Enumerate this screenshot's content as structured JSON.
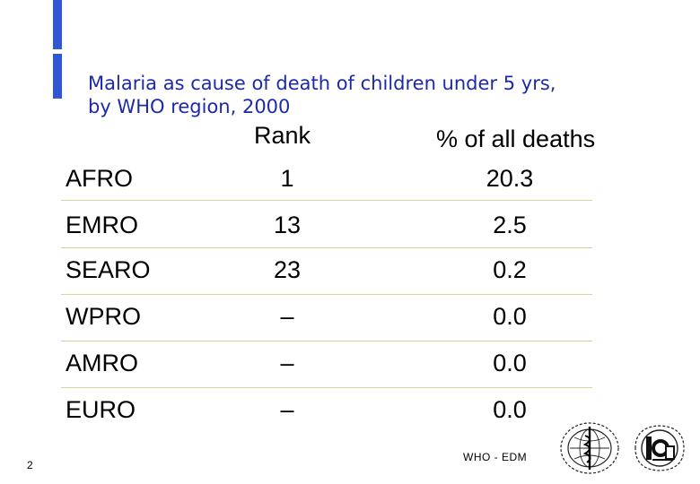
{
  "title": {
    "line1": "Malaria as cause of death of children under 5 yrs,",
    "line2": "by WHO region, 2000"
  },
  "table": {
    "headers": {
      "rank": "Rank",
      "percent": "% of all deaths"
    },
    "rows": [
      {
        "region": "AFRO",
        "rank": "1",
        "percent": "20.3"
      },
      {
        "region": "EMRO",
        "rank": "13",
        "percent": "2.5"
      },
      {
        "region": "SEARO",
        "rank": "23",
        "percent": "0.2"
      },
      {
        "region": "WPRO",
        "rank": "–",
        "percent": "0.0"
      },
      {
        "region": "AMRO",
        "rank": "–",
        "percent": "0.0"
      },
      {
        "region": "EURO",
        "rank": "–",
        "percent": "0.0"
      }
    ]
  },
  "footer": {
    "page_number": "2",
    "label": "WHO - EDM"
  },
  "colors": {
    "accent": "#2f56d6",
    "title": "#1d2aa8",
    "divider": "#d9d39b"
  }
}
